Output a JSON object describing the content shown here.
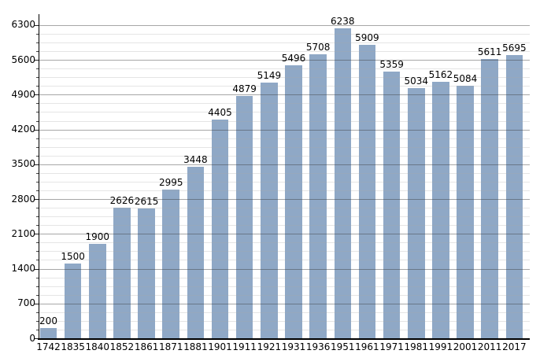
{
  "chart_data": {
    "type": "bar",
    "title": "",
    "xlabel": "",
    "ylabel": "",
    "categories": [
      "1742",
      "1835",
      "1840",
      "1852",
      "1861",
      "1871",
      "1881",
      "1901",
      "1911",
      "1921",
      "1931",
      "1936",
      "1951",
      "1961",
      "1971",
      "1981",
      "1991",
      "2001",
      "2011",
      "2017"
    ],
    "values": [
      200,
      1500,
      1900,
      2626,
      2615,
      2995,
      3448,
      4405,
      4879,
      5149,
      5496,
      5708,
      6238,
      5909,
      5359,
      5034,
      5162,
      5084,
      5611,
      5695
    ],
    "ylim": [
      0,
      6520
    ],
    "yticks_major": [
      0,
      700,
      1400,
      2100,
      2800,
      3500,
      4200,
      4900,
      5600,
      6300
    ],
    "ytick_minor_step": 175,
    "grid": "horizontal, major and faint minor lines, no vertical grid",
    "legend": "none",
    "value_labels_shown": true,
    "bar_color": "#8FA8C6",
    "axis_color": "#000000",
    "major_grid_color": "#9B9B9B",
    "minor_grid_color": "#EBEBEB",
    "label_color": "#000000",
    "background_color": "#FFFFFF"
  }
}
